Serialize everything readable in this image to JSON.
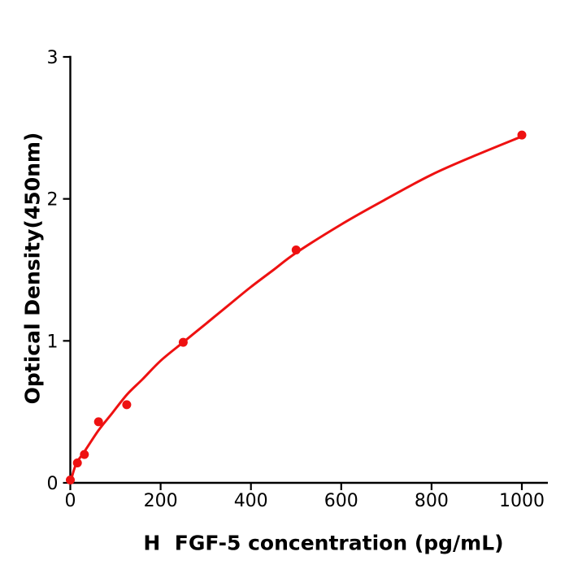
{
  "figure": {
    "background_color": "#ffffff",
    "description": "ELISA standard curve scatter plot with fitted line"
  },
  "chart_data": {
    "type": "scatter",
    "title": "",
    "xlabel": "H  FGF-5 concentration (pg/mL)",
    "ylabel": "Optical Density(450nm)",
    "xlim": [
      0,
      1055
    ],
    "ylim": [
      0,
      3
    ],
    "x_tick_labels": [
      "0",
      "200",
      "400",
      "600",
      "800",
      "1000"
    ],
    "x_tick_values": [
      0,
      200,
      400,
      600,
      800,
      1000
    ],
    "y_tick_labels": [
      "0",
      "1",
      "2",
      "3"
    ],
    "y_tick_values": [
      0,
      1,
      2,
      3
    ],
    "grid": false,
    "legend": "none",
    "colors": {
      "curve": "#ee1111",
      "marker": "#ee1111",
      "axis": "#000000",
      "tick_label": "#000000"
    },
    "series": [
      {
        "name": "standard-points",
        "type": "scatter",
        "marker": "circle",
        "marker_radius": 5.5,
        "x": [
          0,
          15.6,
          31.2,
          62.5,
          125,
          250,
          500,
          1000
        ],
        "y": [
          0.02,
          0.14,
          0.2,
          0.43,
          0.55,
          0.99,
          1.64,
          2.45
        ]
      },
      {
        "name": "fit-curve",
        "type": "line",
        "line_width": 3,
        "x": [
          0,
          8,
          15.6,
          31.2,
          62.5,
          90,
          125,
          160,
          200,
          250,
          300,
          350,
          400,
          450,
          500,
          600,
          700,
          800,
          900,
          1000
        ],
        "y": [
          0,
          0.09,
          0.15,
          0.22,
          0.37,
          0.48,
          0.62,
          0.73,
          0.86,
          0.99,
          1.12,
          1.25,
          1.38,
          1.5,
          1.62,
          1.82,
          2.0,
          2.17,
          2.31,
          2.44
        ]
      }
    ]
  }
}
